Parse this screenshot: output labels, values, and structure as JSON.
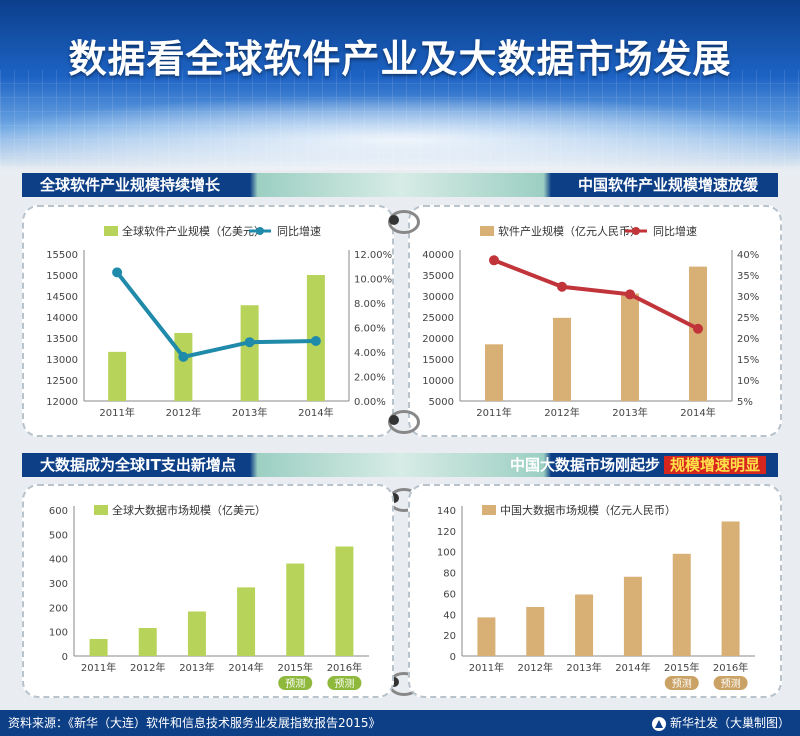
{
  "title": "数据看全球软件产业及大数据市场发展",
  "source": "资料来源：《新华（大连）软件和信息技术服务业发展指数报告2015》",
  "publisher": "新华社发（大巢制图）",
  "sections": {
    "tl": {
      "heading": "全球软件产业规模持续增长"
    },
    "tr": {
      "heading": "中国软件产业规模增速放缓"
    },
    "bl": {
      "heading": "大数据成为全球IT支出新增点"
    },
    "br": {
      "heading": "中国大数据市场刚起步",
      "highlight": "规模增速明显"
    }
  },
  "colors": {
    "green": "#b7d35a",
    "tan": "#d8b075",
    "teal": "#1f8aa9",
    "red": "#c0343a",
    "navy": "#0d3f87",
    "badge_green": "#8fb93c",
    "badge_tan": "#caa265"
  },
  "chart_data": [
    {
      "id": "global_software",
      "type": "bar",
      "categories": [
        "2011年",
        "2012年",
        "2013年",
        "2014年"
      ],
      "series": [
        {
          "name": "全球软件产业规模（亿美元）",
          "type": "bar",
          "values": [
            13170,
            13620,
            14280,
            15000
          ]
        },
        {
          "name": "同比增速",
          "type": "line",
          "axis": "right",
          "values": [
            10.5,
            3.6,
            4.8,
            4.9
          ]
        }
      ],
      "ylim": [
        12000,
        15500
      ],
      "yticks": [
        "12000",
        "12500",
        "13000",
        "13500",
        "14000",
        "14500",
        "15000",
        "15500"
      ],
      "y2lim": [
        0,
        12
      ],
      "y2ticks": [
        "0.00%",
        "2.00%",
        "4.00%",
        "6.00%",
        "8.00%",
        "10.00%",
        "12.00%"
      ]
    },
    {
      "id": "china_software",
      "type": "bar",
      "categories": [
        "2011年",
        "2012年",
        "2013年",
        "2014年"
      ],
      "series": [
        {
          "name": "软件产业规模（亿元人民币）",
          "type": "bar",
          "values": [
            18500,
            24800,
            30600,
            37000
          ]
        },
        {
          "name": "同比增速",
          "type": "line",
          "axis": "right",
          "values": [
            38.5,
            32.2,
            30.4,
            22.2
          ]
        }
      ],
      "ylim": [
        5000,
        40000
      ],
      "yticks": [
        "5000",
        "10000",
        "15000",
        "20000",
        "25000",
        "30000",
        "35000",
        "40000"
      ],
      "y2lim": [
        5,
        40
      ],
      "y2ticks": [
        "5%",
        "10%",
        "15%",
        "20%",
        "25%",
        "30%",
        "35%",
        "40%"
      ]
    },
    {
      "id": "global_bigdata",
      "type": "bar",
      "categories": [
        "2011年",
        "2012年",
        "2013年",
        "2014年",
        "2015年",
        "2016年"
      ],
      "series": [
        {
          "name": "全球大数据市场规模（亿美元）",
          "type": "bar",
          "values": [
            70,
            115,
            183,
            282,
            380,
            450
          ]
        }
      ],
      "forecast_label": "预测",
      "forecast_from": 4,
      "ylim": [
        0,
        600
      ],
      "yticks": [
        "0",
        "100",
        "200",
        "300",
        "400",
        "500",
        "600"
      ]
    },
    {
      "id": "china_bigdata",
      "type": "bar",
      "categories": [
        "2011年",
        "2012年",
        "2013年",
        "2014年",
        "2015年",
        "2016年"
      ],
      "series": [
        {
          "name": "中国大数据市场规模（亿元人民币）",
          "type": "bar",
          "values": [
            37,
            47,
            59,
            76,
            98,
            129
          ]
        }
      ],
      "forecast_label": "预测",
      "forecast_from": 4,
      "ylim": [
        0,
        140
      ],
      "yticks": [
        "0",
        "20",
        "40",
        "60",
        "80",
        "100",
        "120",
        "140"
      ]
    }
  ]
}
